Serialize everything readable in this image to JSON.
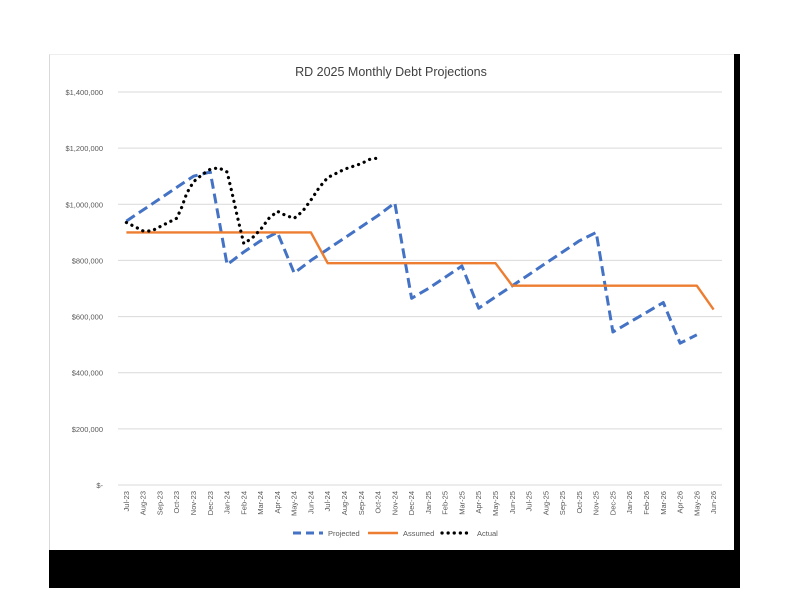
{
  "chart_data": {
    "type": "line",
    "title": "RD 2025 Monthly Debt Projections",
    "xlabel": "",
    "ylabel": "",
    "categories": [
      "Jul-23",
      "Aug-23",
      "Sep-23",
      "Oct-23",
      "Nov-23",
      "Dec-23",
      "Jan-24",
      "Feb-24",
      "Mar-24",
      "Apr-24",
      "May-24",
      "Jun-24",
      "Jul-24",
      "Aug-24",
      "Sep-24",
      "Oct-24",
      "Nov-24",
      "Dec-24",
      "Jan-25",
      "Feb-25",
      "Mar-25",
      "Apr-25",
      "May-25",
      "Jun-25",
      "Jul-25",
      "Aug-25",
      "Sep-25",
      "Oct-25",
      "Nov-25",
      "Dec-25",
      "Jan-26",
      "Feb-26",
      "Mar-26",
      "Apr-26",
      "May-26",
      "Jun-26"
    ],
    "ylim": [
      0,
      1400000
    ],
    "yticks": [
      0,
      200000,
      400000,
      600000,
      800000,
      1000000,
      1200000,
      1400000
    ],
    "ytick_labels": [
      "$-",
      "$200,000",
      "$400,000",
      "$600,000",
      "$800,000",
      "$1,000,000",
      "$1,200,000",
      "$1,400,000"
    ],
    "grid": true,
    "legend_position": "bottom",
    "series": [
      {
        "name": "Projected",
        "color": "#4472c4",
        "style": "dashed",
        "values": [
          940000,
          980000,
          1020000,
          1060000,
          1100000,
          1115000,
          785000,
          830000,
          870000,
          900000,
          755000,
          800000,
          840000,
          880000,
          920000,
          960000,
          1005000,
          665000,
          700000,
          740000,
          780000,
          630000,
          670000,
          710000,
          750000,
          790000,
          830000,
          870000,
          900000,
          545000,
          580000,
          615000,
          650000,
          505000,
          535000,
          null
        ]
      },
      {
        "name": "Assumed",
        "color": "#ed7d31",
        "style": "solid",
        "values": [
          900000,
          900000,
          900000,
          900000,
          900000,
          900000,
          900000,
          900000,
          900000,
          900000,
          900000,
          900000,
          790000,
          790000,
          790000,
          790000,
          790000,
          790000,
          790000,
          790000,
          790000,
          790000,
          790000,
          710000,
          710000,
          710000,
          710000,
          710000,
          710000,
          710000,
          710000,
          710000,
          710000,
          710000,
          710000,
          625000
        ]
      },
      {
        "name": "Actual",
        "color": "#000000",
        "style": "dotted",
        "points": [
          [
            0,
            935000
          ],
          [
            0.5,
            920000
          ],
          [
            1,
            905000
          ],
          [
            1.5,
            905000
          ],
          [
            2,
            920000
          ],
          [
            2.5,
            935000
          ],
          [
            3,
            950000
          ],
          [
            3.3,
            990000
          ],
          [
            3.6,
            1040000
          ],
          [
            4,
            1080000
          ],
          [
            4.5,
            1105000
          ],
          [
            5,
            1125000
          ],
          [
            5.5,
            1130000
          ],
          [
            6,
            1115000
          ],
          [
            6.3,
            1040000
          ],
          [
            6.6,
            960000
          ],
          [
            7,
            860000
          ],
          [
            7.5,
            880000
          ],
          [
            8,
            910000
          ],
          [
            8.5,
            950000
          ],
          [
            9,
            975000
          ],
          [
            9.5,
            960000
          ],
          [
            10,
            950000
          ],
          [
            10.5,
            975000
          ],
          [
            11,
            1015000
          ],
          [
            11.5,
            1060000
          ],
          [
            12,
            1095000
          ],
          [
            12.5,
            1110000
          ],
          [
            13,
            1125000
          ],
          [
            13.5,
            1135000
          ],
          [
            14,
            1145000
          ],
          [
            14.5,
            1160000
          ],
          [
            15,
            1165000
          ]
        ]
      }
    ]
  }
}
